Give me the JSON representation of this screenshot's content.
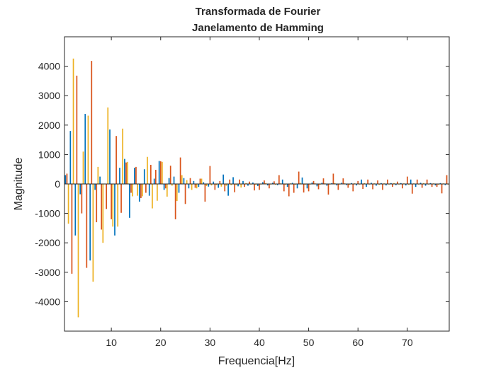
{
  "chart_data": {
    "type": "bar",
    "title": "Transformada de Fourier",
    "subtitle": "Janelamento de Hamming",
    "xlabel": "Frequencia[Hz]",
    "ylabel": "Magnitude",
    "xlim": [
      0.5,
      78.5
    ],
    "ylim": [
      -5000,
      5000
    ],
    "xticks": [
      10,
      20,
      30,
      40,
      50,
      60,
      70
    ],
    "yticks": [
      -4000,
      -3000,
      -2000,
      -1000,
      0,
      1000,
      2000,
      3000,
      4000
    ],
    "xtick_labels": [
      "10",
      "20",
      "30",
      "40",
      "50",
      "60",
      "70"
    ],
    "ytick_labels": [
      "-4000",
      "-3000",
      "-2000",
      "-1000",
      "0",
      "1000",
      "2000",
      "3000",
      "4000"
    ],
    "grid": false,
    "legend": "none",
    "colors": [
      "#0072BD",
      "#D95319",
      "#EDB120"
    ],
    "x": [
      1,
      2,
      3,
      4,
      5,
      6,
      7,
      8,
      9,
      10,
      11,
      12,
      13,
      14,
      15,
      16,
      17,
      18,
      19,
      20,
      21,
      22,
      23,
      24,
      25,
      26,
      27,
      28,
      29,
      30,
      31,
      32,
      33,
      34,
      35,
      36,
      37,
      38,
      39,
      40,
      41,
      42,
      43,
      44,
      45,
      46,
      47,
      48,
      49,
      50,
      51,
      52,
      53,
      54,
      55,
      56,
      57,
      58,
      59,
      60,
      61,
      62,
      63,
      64,
      65,
      66,
      67,
      68,
      69,
      70,
      71,
      72,
      73,
      74,
      75,
      76,
      77,
      78
    ],
    "series": [
      {
        "color": "#0072BD",
        "values": [
          300,
          1800,
          -1750,
          -350,
          2380,
          -2600,
          -200,
          250,
          0,
          1850,
          -1750,
          550,
          850,
          -1150,
          550,
          -600,
          500,
          -400,
          180,
          780,
          -200,
          200,
          250,
          -300,
          200,
          -150,
          100,
          -100,
          60,
          -90,
          80,
          -130,
          320,
          -400,
          230,
          -80,
          100,
          -60,
          50,
          -70,
          60,
          -50,
          40,
          -40,
          150,
          -100,
          40,
          -150,
          220,
          -150,
          50,
          -80,
          40,
          -60,
          30,
          -50,
          40,
          -40,
          30,
          -50,
          150,
          -100,
          40,
          -60,
          30,
          -50,
          30,
          -40,
          30,
          -50,
          150,
          -100,
          40,
          -60,
          30,
          -50,
          30,
          -40
        ]
      },
      {
        "color": "#D95319",
        "values": [
          350,
          -3050,
          3680,
          -1000,
          -2850,
          4180,
          -1300,
          -1550,
          -850,
          -1200,
          1630,
          -980,
          730,
          -300,
          580,
          -480,
          -300,
          650,
          480,
          770,
          -150,
          620,
          -1200,
          900,
          -680,
          200,
          -130,
          180,
          -600,
          610,
          -200,
          100,
          -250,
          150,
          -280,
          150,
          -100,
          80,
          -220,
          -200,
          120,
          -150,
          90,
          300,
          -250,
          -420,
          -300,
          420,
          -290,
          -250,
          100,
          -180,
          190,
          -360,
          350,
          -200,
          190,
          -130,
          -250,
          100,
          -170,
          150,
          -180,
          120,
          -200,
          150,
          -100,
          80,
          -150,
          250,
          -330,
          150,
          -130,
          150,
          -100,
          -100,
          -320,
          300
        ]
      },
      {
        "color": "#EDB120",
        "values": [
          -1350,
          4260,
          -4530,
          1100,
          2320,
          -3320,
          580,
          -2000,
          2600,
          -1450,
          -1450,
          1880,
          750,
          -420,
          -400,
          -420,
          920,
          -830,
          -570,
          750,
          -430,
          -60,
          -580,
          300,
          130,
          -200,
          -150,
          180,
          -70,
          -50,
          -40,
          -90,
          -60,
          -40,
          -40,
          -120,
          30,
          -20,
          -30,
          -20,
          30,
          -20,
          -30,
          20,
          -30,
          20,
          -30,
          40,
          -30,
          -20,
          20,
          -30,
          20,
          -20,
          30,
          -20,
          20,
          -30,
          20,
          -20,
          30,
          -20,
          20,
          -30,
          20,
          -20,
          30,
          -20,
          20,
          -30,
          20,
          -20,
          30,
          -20,
          20,
          -30,
          20,
          -20
        ]
      }
    ]
  }
}
